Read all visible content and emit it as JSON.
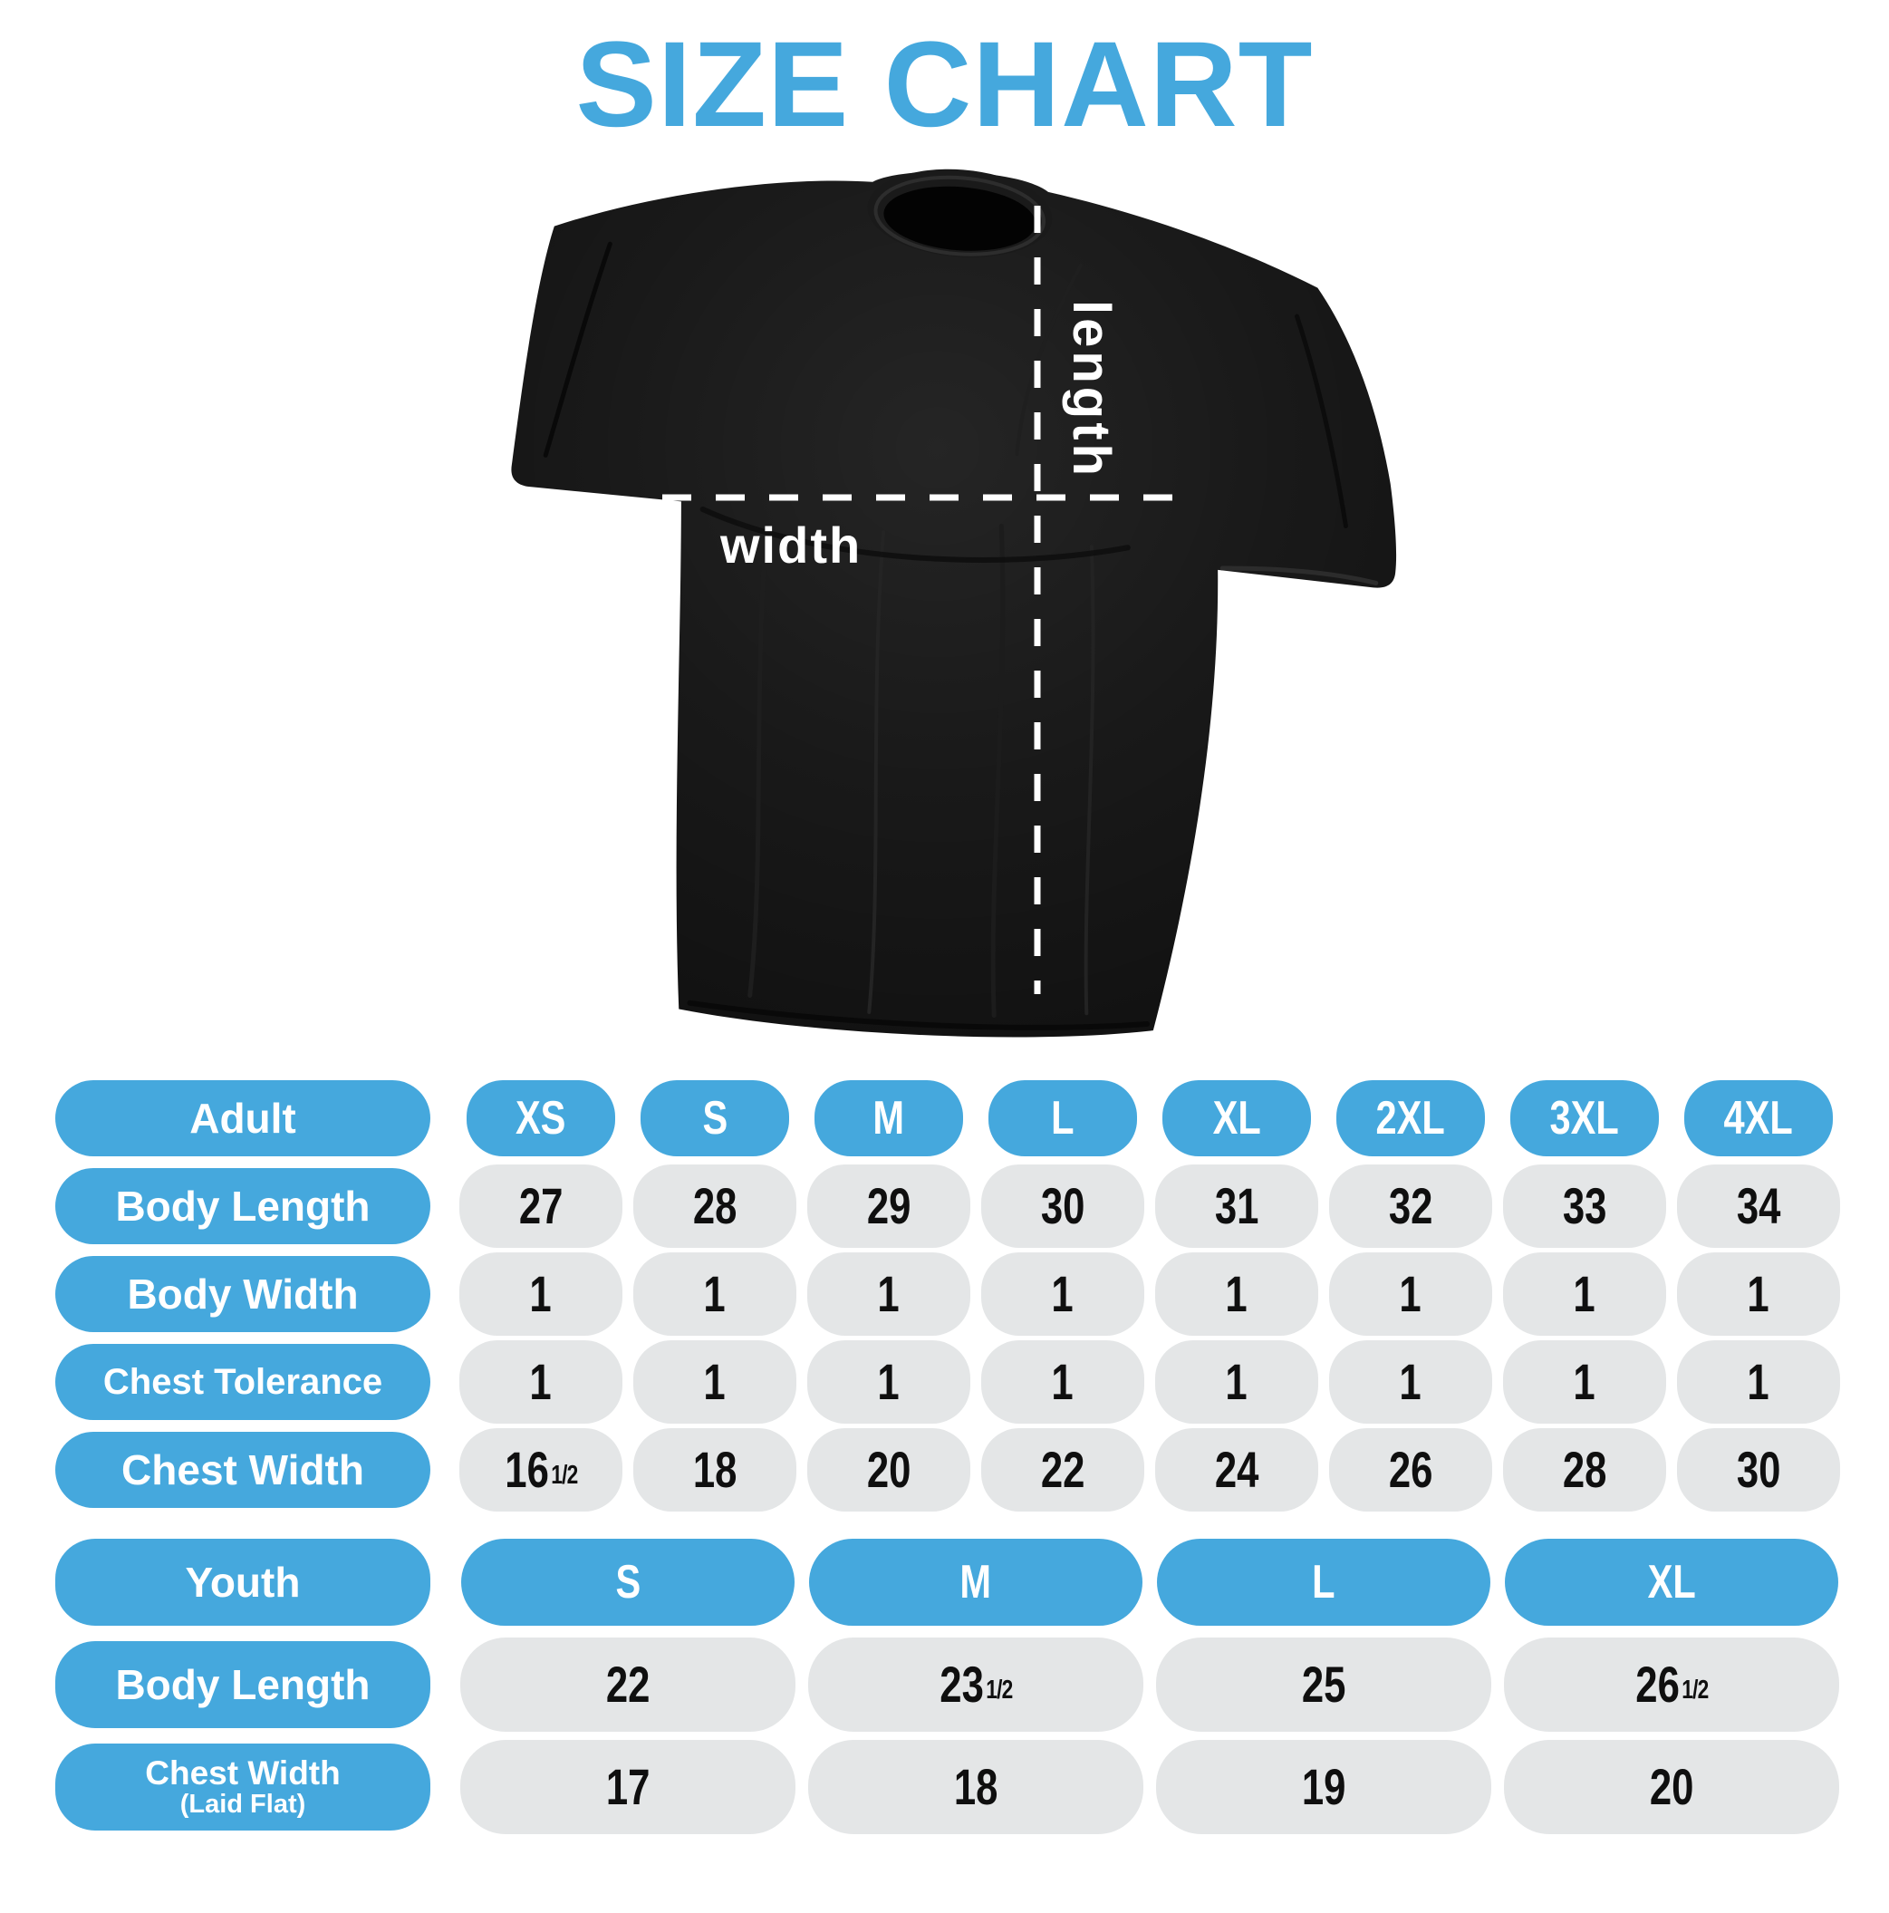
{
  "page": {
    "title": "SIZE CHART"
  },
  "colors": {
    "accent_blue": "#45A8DD",
    "pill_gray": "#E4E6E7",
    "number_black": "#0F0F0F",
    "shirt_black": "#121212",
    "dash_white": "#FFFFFF"
  },
  "shirt_diagram": {
    "length_label": "length",
    "width_label": "width"
  },
  "adult_table": {
    "header": {
      "label": "Adult",
      "sizes": [
        "XS",
        "S",
        "M",
        "L",
        "XL",
        "2XL",
        "3XL",
        "4XL"
      ]
    },
    "rows": [
      {
        "label": "Body Length",
        "values": [
          "27",
          "28",
          "29",
          "30",
          "31",
          "32",
          "33",
          "34"
        ]
      },
      {
        "label": "Body Width",
        "values": [
          "1",
          "1",
          "1",
          "1",
          "1",
          "1",
          "1",
          "1"
        ]
      },
      {
        "label": "Chest Tolerance",
        "values": [
          "1",
          "1",
          "1",
          "1",
          "1",
          "1",
          "1",
          "1"
        ]
      },
      {
        "label": "Chest Width",
        "values": [
          "16½",
          "18",
          "20",
          "22",
          "24",
          "26",
          "28",
          "30"
        ]
      }
    ]
  },
  "youth_table": {
    "header": {
      "label": "Youth",
      "sizes": [
        "S",
        "M",
        "L",
        "XL"
      ]
    },
    "rows": [
      {
        "label": "Body Length",
        "values": [
          "22",
          "23½",
          "25",
          "26½"
        ]
      },
      {
        "label": "Chest Width",
        "label_sub": "(Laid Flat)",
        "values": [
          "17",
          "18",
          "19",
          "20"
        ]
      }
    ]
  },
  "chart_data": [
    {
      "type": "table",
      "title": "Adult",
      "columns": [
        "XS",
        "S",
        "M",
        "L",
        "XL",
        "2XL",
        "3XL",
        "4XL"
      ],
      "rows": [
        {
          "label": "Body Length",
          "values": [
            27,
            28,
            29,
            30,
            31,
            32,
            33,
            34
          ]
        },
        {
          "label": "Body Width",
          "values": [
            1,
            1,
            1,
            1,
            1,
            1,
            1,
            1
          ]
        },
        {
          "label": "Chest Tolerance",
          "values": [
            1,
            1,
            1,
            1,
            1,
            1,
            1,
            1
          ]
        },
        {
          "label": "Chest Width",
          "values": [
            16.5,
            18,
            20,
            22,
            24,
            26,
            28,
            30
          ]
        }
      ]
    },
    {
      "type": "table",
      "title": "Youth",
      "columns": [
        "S",
        "M",
        "L",
        "XL"
      ],
      "rows": [
        {
          "label": "Body Length",
          "values": [
            22,
            23.5,
            25,
            26.5
          ]
        },
        {
          "label": "Chest Width (Laid Flat)",
          "values": [
            17,
            18,
            19,
            20
          ]
        }
      ]
    }
  ]
}
